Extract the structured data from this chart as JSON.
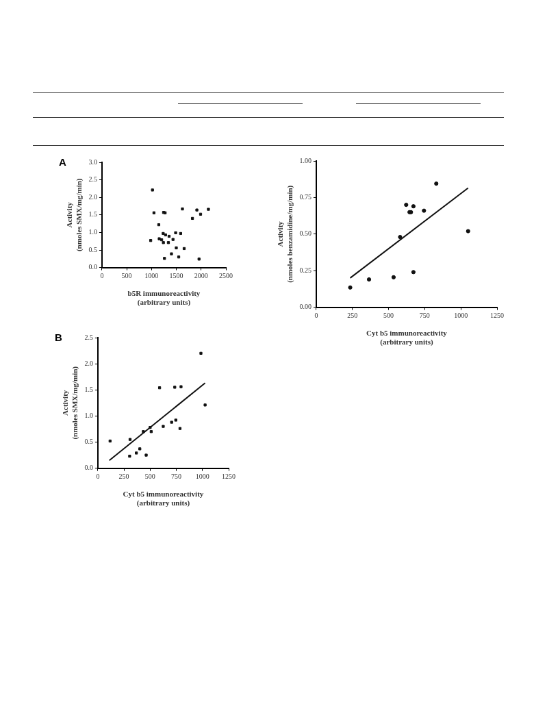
{
  "chart_data": [
    {
      "type": "scatter",
      "title": "A",
      "xlabel": "b5R immunoreactivity\n(arbitrary units)",
      "ylabel": "Activity\n(nmoles SMX/mg/min)",
      "xlim": [
        0,
        2500
      ],
      "xticks": [
        0,
        500,
        1000,
        1500,
        2000,
        2500
      ],
      "ylim": [
        0,
        3
      ],
      "yticks": [
        {
          "value": 0,
          "label": "0.0"
        },
        0.5,
        {
          "value": 1,
          "label": "1.0"
        },
        1.5,
        {
          "value": 2,
          "label": "2.0"
        },
        2.5,
        {
          "value": 3,
          "label": "3.0"
        }
      ],
      "marker": "square",
      "series": [
        {
          "color": "#111111",
          "x": [
            983,
            1019,
            1049,
            1146,
            1155,
            1204,
            1235,
            1239,
            1243,
            1274,
            1261,
            1283,
            1354,
            1340,
            1402,
            1433,
            1486,
            1499,
            1548,
            1587,
            1623,
            1658,
            1825,
            1914,
            1989,
            1958,
            2147
          ],
          "values": [
            0.77,
            2.21,
            1.56,
            1.22,
            0.82,
            0.79,
            0.97,
            0.71,
            1.57,
            1.56,
            0.26,
            0.93,
            0.89,
            0.71,
            0.39,
            0.8,
            0.99,
            0.56,
            0.3,
            0.97,
            1.67,
            0.54,
            1.4,
            1.64,
            1.52,
            0.24,
            1.66
          ]
        }
      ]
    },
    {
      "type": "scatter",
      "xlabel": "Cyt b5 immunoreactivity\n(arbitrary units)",
      "ylabel": "Activity\n(nmoles benzamidine/mg/min)",
      "xlim": [
        0,
        1250
      ],
      "xticks": [
        0,
        250,
        500,
        750,
        1000,
        1250
      ],
      "ylim": [
        0,
        1
      ],
      "yticks": [
        {
          "value": 0,
          "label": "0.00"
        },
        0.25,
        {
          "value": 0.5,
          "label": "0.50"
        },
        0.75,
        {
          "value": 1,
          "label": "1.00"
        }
      ],
      "marker": "circle",
      "series": [
        {
          "color": "#111111",
          "x": [
            235,
            365,
            535,
            580,
            622,
            672,
            645,
            655,
            745,
            830,
            672,
            1050
          ],
          "values": [
            0.135,
            0.19,
            0.205,
            0.48,
            0.7,
            0.69,
            0.65,
            0.65,
            0.66,
            0.845,
            0.24,
            0.52
          ]
        },
        {
          "type": "line",
          "marker": "none",
          "color": "#111111",
          "x": [
            235,
            1050
          ],
          "values": [
            0.2,
            0.815
          ]
        }
      ]
    },
    {
      "type": "scatter",
      "title": "B",
      "xlabel": "Cyt b5 immunoreactivity\n(arbitrary units)",
      "ylabel": "Activity\n(nmoles SMX/mg/min)",
      "xlim": [
        0,
        1250
      ],
      "xticks": [
        0,
        250,
        500,
        750,
        1000,
        1250
      ],
      "ylim": [
        0,
        2.5
      ],
      "yticks": [
        {
          "value": 0,
          "label": "0.0"
        },
        0.5,
        {
          "value": 1,
          "label": "1.0"
        },
        1.5,
        {
          "value": 2,
          "label": "2.0"
        },
        2.5
      ],
      "marker": "square",
      "series": [
        {
          "color": "#111111",
          "x": [
            117,
            304,
            308,
            368,
            401,
            435,
            462,
            500,
            510,
            590,
            625,
            705,
            735,
            745,
            785,
            795,
            985,
            1025
          ],
          "values": [
            0.52,
            0.23,
            0.55,
            0.29,
            0.37,
            0.7,
            0.25,
            0.78,
            0.7,
            1.54,
            0.8,
            0.88,
            1.55,
            0.92,
            0.76,
            1.56,
            2.2,
            1.21
          ]
        },
        {
          "type": "line",
          "marker": "none",
          "color": "#111111",
          "x": [
            110,
            1025
          ],
          "values": [
            0.15,
            1.63
          ]
        }
      ]
    }
  ]
}
